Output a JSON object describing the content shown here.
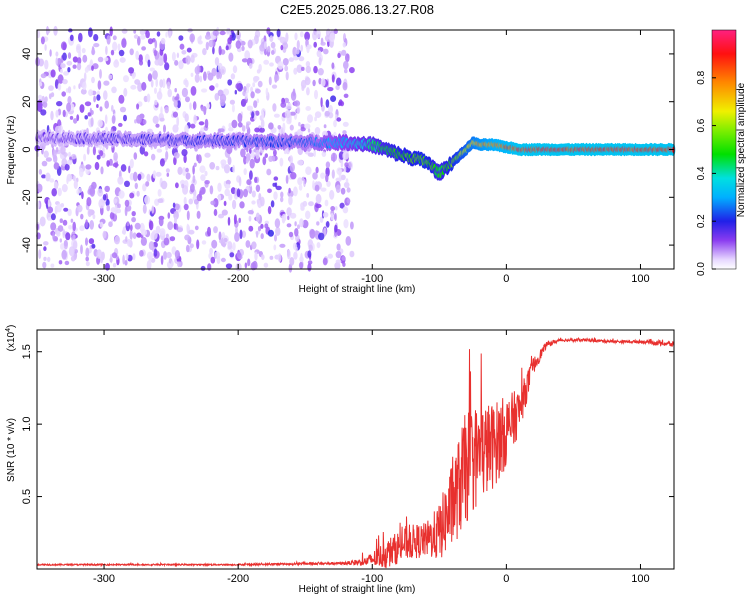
{
  "title": "C2E5.2025.086.13.27.R08",
  "chart_data": [
    {
      "type": "heatmap",
      "title": "C2E5.2025.086.13.27.R08",
      "xlabel": "Height of straight line (km)",
      "ylabel": "Frequency (Hz)",
      "xlim": [
        -350,
        125
      ],
      "ylim": [
        -50,
        50
      ],
      "xticks": [
        -300,
        -200,
        -100,
        0,
        100
      ],
      "yticks": [
        -40,
        -20,
        0,
        20,
        40
      ],
      "colorbar": {
        "label": "Normalized spectral amplitude",
        "range": [
          0,
          1
        ],
        "ticks": [
          0.0,
          0.2,
          0.4,
          0.6,
          0.8
        ],
        "tick_labels": [
          "0.0",
          "0.2",
          "0.4",
          "0.6",
          "0.8"
        ]
      },
      "noise_region_x": [
        -350,
        -115
      ],
      "signal_track": {
        "x": [
          -350,
          -250,
          -150,
          -120,
          -100,
          -80,
          -60,
          -50,
          -40,
          -30,
          -25,
          -20,
          -10,
          0,
          10,
          20,
          125
        ],
        "freq_hz": [
          5,
          4,
          3,
          3,
          2,
          -2,
          -5,
          -10,
          -5,
          0,
          3,
          2,
          2,
          1,
          0,
          0,
          0
        ],
        "amplitude": [
          0.15,
          0.2,
          0.25,
          0.35,
          0.45,
          0.55,
          0.6,
          0.5,
          0.6,
          0.7,
          0.75,
          0.8,
          0.85,
          0.9,
          0.95,
          0.95,
          0.95
        ]
      }
    },
    {
      "type": "line",
      "xlabel": "Height of straight line (km)",
      "ylabel": "SNR (10 * v/v)",
      "multiplier_label": "(x10",
      "multiplier_exp": "4",
      "multiplier_close": ")",
      "xlim": [
        -350,
        125
      ],
      "ylim": [
        0,
        1.65
      ],
      "xticks": [
        -300,
        -200,
        -100,
        0,
        100
      ],
      "yticks": [
        0.5,
        1.0,
        1.5
      ],
      "ytick_labels": [
        "0.5",
        "1.0",
        "1.5"
      ],
      "series": [
        {
          "name": "SNR",
          "color": "#e8302e",
          "x": [
            -350,
            -200,
            -120,
            -105,
            -90,
            -75,
            -60,
            -50,
            -40,
            -30,
            -20,
            -10,
            0,
            10,
            20,
            30,
            40,
            60,
            80,
            100,
            115,
            125
          ],
          "values": [
            0.03,
            0.03,
            0.04,
            0.05,
            0.1,
            0.18,
            0.2,
            0.25,
            0.45,
            0.7,
            0.8,
            0.85,
            0.95,
            1.1,
            1.4,
            1.55,
            1.58,
            1.58,
            1.57,
            1.57,
            1.56,
            1.55
          ],
          "noise_amp": [
            0.005,
            0.005,
            0.01,
            0.03,
            0.1,
            0.12,
            0.12,
            0.2,
            0.3,
            0.4,
            0.35,
            0.3,
            0.25,
            0.15,
            0.06,
            0.02,
            0.01,
            0.01,
            0.01,
            0.01,
            0.02,
            0.02
          ]
        }
      ]
    }
  ],
  "colors": {
    "line": "#e8302e",
    "axis": "#000000",
    "noise": "#7a2ee8"
  }
}
